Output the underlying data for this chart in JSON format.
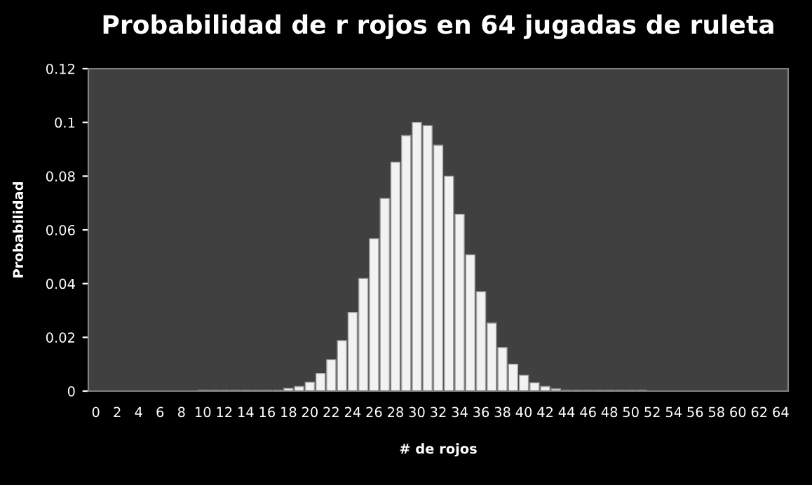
{
  "chart_data": {
    "type": "bar",
    "title": "Probabilidad de r rojos en 64 jugadas de ruleta",
    "xlabel": "# de rojos",
    "ylabel": "Probabilidad",
    "categories": [
      "0",
      null,
      "2",
      null,
      "4",
      null,
      "6",
      null,
      "8",
      null,
      "10",
      null,
      "12",
      null,
      "14",
      null,
      "16",
      null,
      "18",
      null,
      "20",
      null,
      "22",
      null,
      "24",
      null,
      "26",
      null,
      "28",
      null,
      "30",
      null,
      "32",
      null,
      "34",
      null,
      "36",
      null,
      "38",
      null,
      "40",
      null,
      "42",
      null,
      "44",
      null,
      "46",
      null,
      "48",
      null,
      "50",
      null,
      "52",
      null,
      "54",
      null,
      "56",
      null,
      "58",
      null,
      "60",
      null,
      "62",
      null,
      "64"
    ],
    "values": [
      0,
      0,
      0,
      0,
      0,
      0,
      0,
      0,
      0,
      0,
      0.0003,
      0.0003,
      0.0003,
      0.0003,
      0.0003,
      0.0003,
      0.0003,
      0.0003,
      0.001,
      0.0017,
      0.0033,
      0.0066,
      0.0117,
      0.0188,
      0.0293,
      0.0419,
      0.0567,
      0.0717,
      0.0852,
      0.0951,
      0.1,
      0.0988,
      0.0915,
      0.08,
      0.0658,
      0.0507,
      0.037,
      0.0253,
      0.0162,
      0.01,
      0.0059,
      0.0031,
      0.0017,
      0.0008,
      0.0003,
      0.0003,
      0.0003,
      0.0003,
      0.0003,
      0.0003,
      0.0003,
      0.0003,
      0,
      0,
      0,
      0,
      0,
      0,
      0,
      0,
      0,
      0,
      0,
      0,
      0
    ],
    "color": "#f2f2f2",
    "ylim": [
      0,
      0.12
    ],
    "yticks": [
      0,
      0.02,
      0.04,
      0.06,
      0.08,
      0.1,
      0.12
    ],
    "grid": false,
    "legend": false
  }
}
